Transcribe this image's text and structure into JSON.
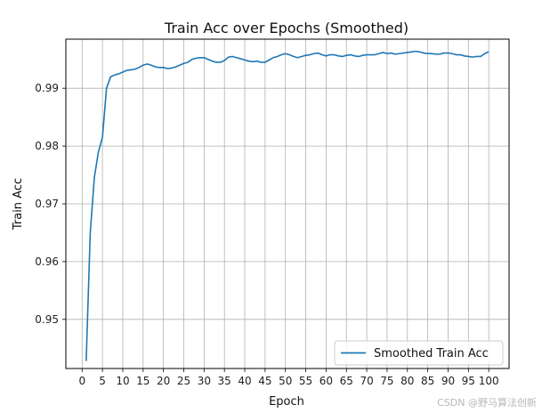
{
  "chart_data": {
    "type": "line",
    "title": "Train Acc over Epochs (Smoothed)",
    "xlabel": "Epoch",
    "ylabel": "Train Acc",
    "xlim": [
      -4,
      105
    ],
    "ylim": [
      0.9415,
      0.9985
    ],
    "x_ticks": [
      0,
      5,
      10,
      15,
      20,
      25,
      30,
      35,
      40,
      45,
      50,
      55,
      60,
      65,
      70,
      75,
      80,
      85,
      90,
      95,
      100
    ],
    "y_ticks": [
      0.95,
      0.96,
      0.97,
      0.98,
      0.99
    ],
    "y_tick_labels": [
      "0.95",
      "0.96",
      "0.97",
      "0.98",
      "0.99"
    ],
    "grid": true,
    "legend_position": "lower-right",
    "series": [
      {
        "name": "Smoothed Train Acc",
        "color": "#1f77b4",
        "x": [
          1,
          2,
          3,
          4,
          5,
          6,
          7,
          8,
          9,
          10,
          11,
          12,
          13,
          14,
          15,
          16,
          17,
          18,
          19,
          20,
          21,
          22,
          23,
          24,
          25,
          26,
          27,
          28,
          29,
          30,
          31,
          32,
          33,
          34,
          35,
          36,
          37,
          38,
          39,
          40,
          41,
          42,
          43,
          44,
          45,
          46,
          47,
          48,
          49,
          50,
          51,
          52,
          53,
          54,
          55,
          56,
          57,
          58,
          59,
          60,
          61,
          62,
          63,
          64,
          65,
          66,
          67,
          68,
          69,
          70,
          71,
          72,
          73,
          74,
          75,
          76,
          77,
          78,
          79,
          80,
          81,
          82,
          83,
          84,
          85,
          86,
          87,
          88,
          89,
          90,
          91,
          92,
          93,
          94,
          95,
          96,
          97,
          98,
          99,
          100
        ],
        "values": [
          0.9428,
          0.965,
          0.9745,
          0.979,
          0.9815,
          0.99,
          0.992,
          0.9923,
          0.9925,
          0.9928,
          0.9931,
          0.9932,
          0.9933,
          0.9936,
          0.994,
          0.9942,
          0.994,
          0.9937,
          0.9936,
          0.9936,
          0.9934,
          0.9935,
          0.9937,
          0.994,
          0.9943,
          0.9945,
          0.995,
          0.9952,
          0.9953,
          0.9953,
          0.995,
          0.9947,
          0.9945,
          0.9945,
          0.9948,
          0.9954,
          0.9955,
          0.9953,
          0.9951,
          0.9949,
          0.9947,
          0.9946,
          0.9947,
          0.9945,
          0.9945,
          0.9949,
          0.9953,
          0.9955,
          0.9958,
          0.996,
          0.9958,
          0.9955,
          0.9953,
          0.9955,
          0.9957,
          0.9958,
          0.996,
          0.9961,
          0.9958,
          0.9956,
          0.9958,
          0.9958,
          0.9956,
          0.9955,
          0.9957,
          0.9958,
          0.9956,
          0.9955,
          0.9957,
          0.9958,
          0.9958,
          0.9958,
          0.996,
          0.9962,
          0.996,
          0.9961,
          0.9959,
          0.996,
          0.9961,
          0.9962,
          0.9963,
          0.9964,
          0.9963,
          0.9961,
          0.996,
          0.996,
          0.9959,
          0.9959,
          0.9961,
          0.9961,
          0.996,
          0.9958,
          0.9958,
          0.9956,
          0.9955,
          0.9954,
          0.9955,
          0.9955,
          0.996,
          0.9963
        ]
      }
    ]
  },
  "watermark_text": "CSDN @野马算法创新"
}
